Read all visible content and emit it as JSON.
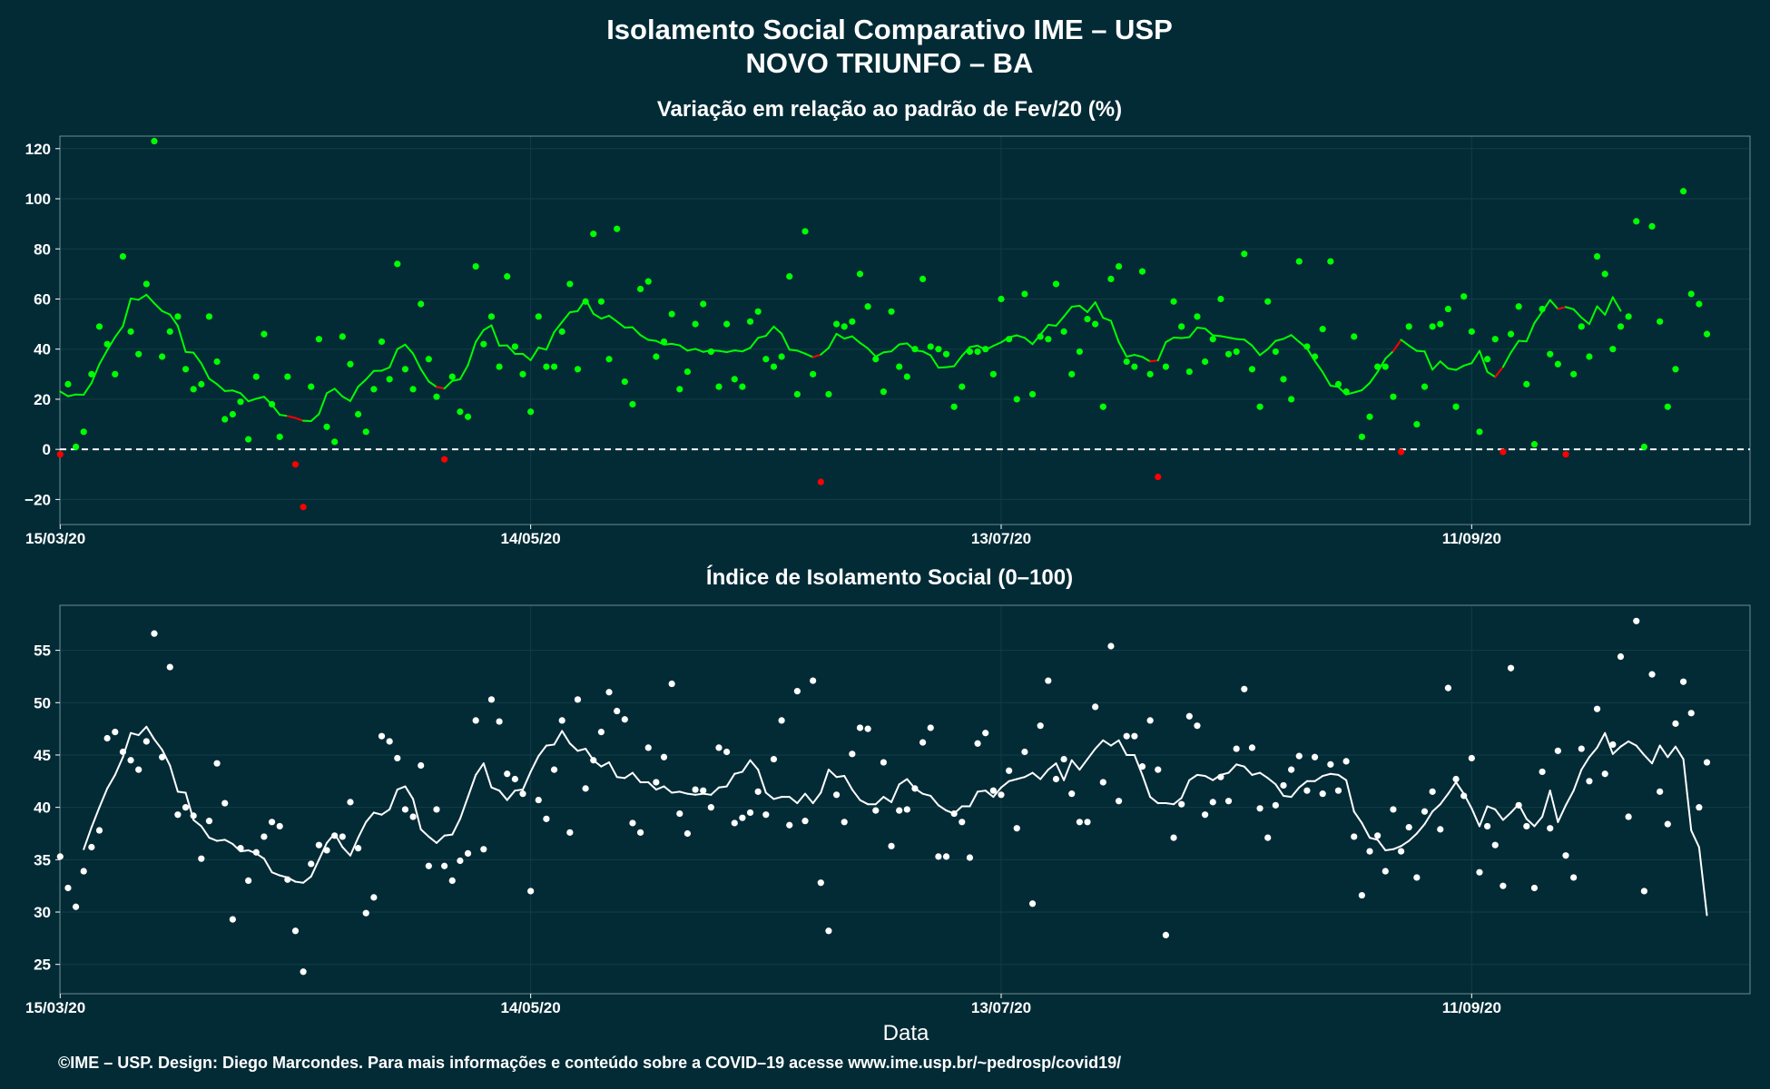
{
  "figure": {
    "title_line1": "Isolamento Social Comparativo IME – USP",
    "title_line2": "NOVO TRIUNFO – BA",
    "xlabel": "Data",
    "footer": "©IME – USP. Design: Diego Marcondes. Para mais informações e conteúdo sobre a COVID–19 acesse www.ime.usp.br/~pedrosp/covid19/",
    "colors": {
      "background": "#022b36",
      "positive": "#00ff00",
      "negative": "#ff0000",
      "index": "#ffffff",
      "grid": "#123c47"
    }
  },
  "chart_data": [
    {
      "type": "scatter",
      "title": "Variação em relação ao padrão de Fev/20 (%)",
      "xlabel": "",
      "ylabel": "",
      "x_start": "15/03/20",
      "x_end": "16/10/20",
      "x_ticks": [
        "15/03/20",
        "14/05/20",
        "13/07/20",
        "11/09/20"
      ],
      "y_ticks": [
        -20,
        0,
        20,
        40,
        60,
        80,
        100,
        120
      ],
      "ylim": [
        -30,
        125
      ],
      "reference_line": 0,
      "grid": true,
      "note": "points: daily values (green >= 0, red < 0); line: 7-day moving average",
      "values": [
        -2,
        26,
        1,
        7,
        30,
        49,
        42,
        30,
        77,
        47,
        38,
        66,
        123,
        37,
        47,
        53,
        32,
        24,
        26,
        53,
        35,
        12,
        14,
        19,
        4,
        29,
        46,
        18,
        5,
        29,
        -6,
        -23,
        25,
        44,
        9,
        3,
        45,
        34,
        14,
        7,
        24,
        43,
        28,
        74,
        32,
        24,
        58,
        36,
        21,
        -4,
        29,
        15,
        13,
        73,
        42,
        53,
        33,
        69,
        41,
        30,
        15,
        53,
        33,
        33,
        47,
        66,
        32,
        59,
        86,
        59,
        36,
        88,
        27,
        18,
        64,
        67,
        37,
        43,
        54,
        24,
        31,
        50,
        58,
        39,
        25,
        50,
        28,
        25,
        51,
        55,
        36,
        33,
        37,
        69,
        22,
        87,
        30,
        -13,
        22,
        50,
        49,
        51,
        70,
        57,
        36,
        23,
        55,
        33,
        29,
        40,
        68,
        41,
        40,
        38,
        17,
        25,
        39,
        39,
        40,
        30,
        60,
        44,
        20,
        62,
        22,
        45,
        44,
        66,
        47,
        30,
        39,
        52,
        50,
        17,
        68,
        73,
        35,
        33,
        71,
        30,
        -11,
        33,
        59,
        49,
        31,
        53,
        35,
        44,
        60,
        38,
        39,
        78,
        32,
        17,
        59,
        39,
        28,
        20,
        75,
        41,
        37,
        48,
        75,
        26,
        23,
        45,
        5,
        13,
        33,
        33,
        21,
        -1,
        49,
        10,
        25,
        49,
        50,
        56,
        17,
        61,
        47,
        7,
        36,
        44,
        -1,
        46,
        57,
        26,
        2,
        56,
        38,
        34,
        -2,
        30,
        49,
        37,
        77,
        70,
        40,
        49,
        53,
        91,
        1,
        89,
        51,
        17,
        32,
        103,
        62,
        58,
        46
      ],
      "moving_average": [
        23.1,
        21.2,
        21.9,
        21.8,
        26.5,
        34.0,
        39.6,
        44.8,
        49.1,
        60.2,
        59.7,
        61.7,
        58.3,
        55.2,
        53.8,
        49.3,
        38.9,
        38.6,
        34.3,
        28.2,
        26.0,
        23.3,
        23.5,
        22.4,
        19.2,
        20.2,
        21.0,
        17.8,
        13.8,
        13.3,
        12.5,
        11.4,
        11.3,
        14.1,
        22.4,
        24.2,
        21.1,
        19.3,
        25.0,
        27.9,
        31.3,
        31.4,
        32.7,
        40.0,
        41.8,
        38.2,
        32.0,
        27.1,
        24.9,
        24.3,
        27.3,
        28.0,
        33.6,
        42.9,
        47.6,
        49.5,
        41.4,
        41.5,
        38.1,
        38.1,
        35.6,
        40.6,
        39.8,
        46.8,
        50.8,
        54.7,
        55.2,
        59.9,
        54.1,
        52.2,
        53.3,
        51.0,
        48.6,
        48.7,
        45.6,
        43.7,
        43.3,
        41.8,
        42.1,
        41.5,
        39.4,
        40.1,
        38.9,
        39.5,
        39.3,
        38.8,
        39.5,
        39.1,
        40.5,
        44.5,
        45.3,
        49.0,
        46.2,
        39.8,
        39.4,
        38.2,
        36.8,
        37.8,
        40.5,
        46.1,
        44.2,
        45.1,
        42.5,
        40.3,
        37.0,
        38.7,
        39.1,
        41.9,
        42.3,
        39.5,
        39.1,
        37.5,
        32.6,
        32.8,
        33.2,
        37.3,
        40.8,
        41.4,
        39.7,
        41.3,
        42.7,
        44.7,
        45.5,
        44.5,
        42.0,
        45.8,
        49.7,
        49.3,
        53.0,
        56.9,
        57.3,
        54.8,
        58.7,
        52.5,
        51.3,
        42.8,
        37.0,
        37.7,
        36.9,
        35.1,
        35.5,
        42.8,
        44.6,
        44.4,
        44.8,
        48.6,
        48.2,
        45.5,
        45.2,
        44.6,
        44.0,
        43.8,
        41.4,
        37.6,
        40.0,
        43.3,
        44.1,
        45.6,
        42.9,
        40.3,
        35.3,
        30.8,
        25.4,
        24.9,
        21.9,
        22.7,
        23.6,
        26.5,
        30.9,
        36.2,
        39.2,
        43.7,
        41.4,
        39.3,
        39.1,
        31.8,
        35.1,
        32.3,
        31.7,
        33.4,
        34.4,
        39.3,
        30.9,
        28.9,
        32.9,
        38.6,
        43.3,
        43.1,
        50.4,
        54.9,
        59.6,
        56.0,
        56.8,
        55.9,
        52.6,
        50.0,
        57.1,
        53.7,
        60.7,
        55.3
      ]
    },
    {
      "type": "scatter",
      "title": "Índice de Isolamento Social (0–100)",
      "xlabel": "Data",
      "ylabel": "",
      "x_start": "15/03/20",
      "x_end": "16/10/20",
      "x_ticks": [
        "15/03/20",
        "14/05/20",
        "13/07/20",
        "11/09/20"
      ],
      "y_ticks": [
        25,
        30,
        35,
        40,
        45,
        50,
        55
      ],
      "ylim": [
        22.2,
        59.3
      ],
      "grid": true,
      "note": "points: daily index; line: 7-day moving average",
      "values": [
        35.3,
        32.3,
        30.5,
        33.9,
        36.2,
        37.8,
        46.6,
        47.2,
        45.3,
        44.5,
        43.6,
        46.3,
        56.6,
        44.8,
        53.4,
        39.3,
        40.0,
        39.2,
        35.1,
        38.7,
        44.2,
        40.4,
        29.3,
        36.1,
        33.0,
        35.7,
        37.2,
        38.6,
        38.2,
        33.1,
        28.2,
        24.3,
        34.6,
        36.4,
        35.9,
        37.3,
        37.2,
        40.5,
        36.1,
        29.9,
        31.4,
        46.8,
        46.3,
        44.7,
        39.8,
        39.1,
        44.0,
        34.4,
        39.8,
        34.4,
        33.0,
        34.9,
        35.6,
        48.3,
        36.0,
        50.3,
        48.2,
        43.2,
        42.7,
        41.3,
        32.0,
        40.7,
        38.9,
        43.6,
        48.3,
        37.6,
        50.3,
        41.8,
        44.5,
        47.2,
        51.0,
        49.2,
        48.4,
        38.5,
        37.6,
        45.7,
        42.4,
        44.8,
        51.8,
        39.4,
        37.5,
        41.7,
        41.6,
        40.0,
        45.7,
        45.3,
        38.5,
        39.0,
        39.5,
        41.5,
        39.3,
        44.6,
        48.3,
        38.3,
        51.1,
        38.7,
        52.1,
        32.8,
        28.2,
        41.2,
        38.6,
        45.1,
        47.6,
        47.5,
        39.7,
        44.3,
        36.3,
        39.7,
        39.8,
        41.8,
        46.2,
        47.6,
        35.3,
        35.3,
        39.4,
        38.6,
        35.2,
        46.1,
        47.1,
        41.6,
        41.2,
        43.5,
        38.0,
        45.3,
        30.8,
        47.8,
        52.1,
        42.7,
        44.6,
        41.3,
        38.6,
        38.6,
        49.6,
        42.4,
        55.4,
        40.6,
        46.8,
        46.8,
        43.9,
        48.3,
        43.6,
        27.8,
        37.1,
        40.3,
        48.7,
        47.8,
        39.3,
        40.5,
        42.9,
        40.6,
        45.6,
        51.3,
        45.7,
        39.9,
        37.1,
        40.2,
        42.1,
        43.6,
        44.9,
        41.6,
        44.8,
        41.3,
        44.1,
        41.6,
        44.4,
        37.2,
        31.6,
        35.8,
        37.3,
        33.9,
        39.8,
        35.8,
        38.1,
        33.3,
        39.6,
        41.5,
        37.9,
        51.4,
        42.7,
        41.1,
        44.7,
        33.8,
        38.2,
        36.4,
        32.5,
        53.3,
        40.2,
        38.2,
        32.3,
        43.4,
        38.0,
        45.4,
        35.4,
        33.3,
        45.6,
        42.5,
        49.4,
        43.2,
        46.0,
        54.4,
        39.1,
        57.8,
        32.0,
        52.7,
        41.5,
        38.4,
        48.0,
        52.0,
        49.0,
        40.0,
        44.3
      ],
      "moving_average": [
        null,
        null,
        null,
        36.0,
        38.1,
        40.0,
        41.8,
        43.1,
        44.8,
        47.1,
        46.9,
        47.7,
        46.5,
        45.5,
        44.0,
        41.5,
        41.4,
        38.8,
        38.2,
        37.1,
        36.8,
        36.9,
        36.5,
        35.8,
        35.9,
        35.6,
        35.1,
        33.8,
        33.5,
        33.3,
        32.9,
        32.8,
        33.4,
        35.0,
        36.6,
        37.5,
        36.2,
        35.4,
        37.1,
        38.6,
        39.5,
        39.3,
        39.8,
        41.7,
        42.0,
        40.8,
        37.9,
        37.2,
        36.6,
        37.3,
        37.4,
        38.9,
        41.0,
        43.1,
        44.2,
        41.9,
        41.6,
        40.7,
        41.6,
        41.7,
        43.4,
        44.9,
        45.9,
        46.0,
        47.3,
        46.1,
        45.4,
        45.6,
        44.5,
        43.9,
        44.3,
        42.9,
        42.8,
        43.3,
        42.4,
        42.4,
        41.7,
        42.0,
        41.4,
        41.5,
        41.3,
        41.2,
        41.3,
        41.2,
        41.9,
        42.0,
        43.2,
        43.4,
        44.5,
        43.6,
        41.4,
        40.8,
        41.0,
        41.0,
        40.4,
        41.3,
        40.4,
        41.4,
        43.6,
        42.9,
        43.0,
        41.7,
        40.7,
        40.3,
        40.3,
        41.0,
        40.5,
        42.2,
        42.7,
        41.8,
        41.3,
        41.1,
        40.2,
        39.7,
        39.4,
        40.1,
        40.1,
        41.5,
        41.6,
        41.0,
        41.9,
        42.5,
        42.7,
        42.9,
        43.3,
        42.7,
        43.6,
        44.2,
        42.6,
        44.5,
        43.6,
        44.6,
        45.6,
        46.4,
        45.9,
        46.4,
        45.0,
        45.0,
        43.1,
        41.0,
        40.4,
        40.4,
        40.3,
        40.9,
        42.6,
        43.1,
        43.0,
        42.6,
        43.1,
        43.3,
        44.1,
        43.9,
        43.1,
        43.3,
        42.8,
        42.2,
        41.1,
        41.0,
        41.9,
        42.5,
        42.5,
        43.0,
        43.2,
        43.1,
        42.6,
        39.6,
        38.5,
        37.1,
        36.9,
        35.9,
        36.0,
        36.3,
        36.8,
        37.5,
        38.4,
        39.6,
        40.3,
        41.3,
        42.4,
        41.3,
        39.9,
        38.2,
        40.1,
        39.8,
        38.8,
        39.5,
        40.3,
        38.9,
        38.2,
        39.1,
        41.6,
        38.6,
        40.2,
        41.6,
        43.6,
        44.8,
        45.7,
        47.1,
        45.1,
        45.8,
        46.3,
        45.9,
        45.0,
        44.2,
        45.9,
        44.8,
        45.8,
        44.6,
        37.8,
        36.2,
        29.7
      ]
    }
  ]
}
